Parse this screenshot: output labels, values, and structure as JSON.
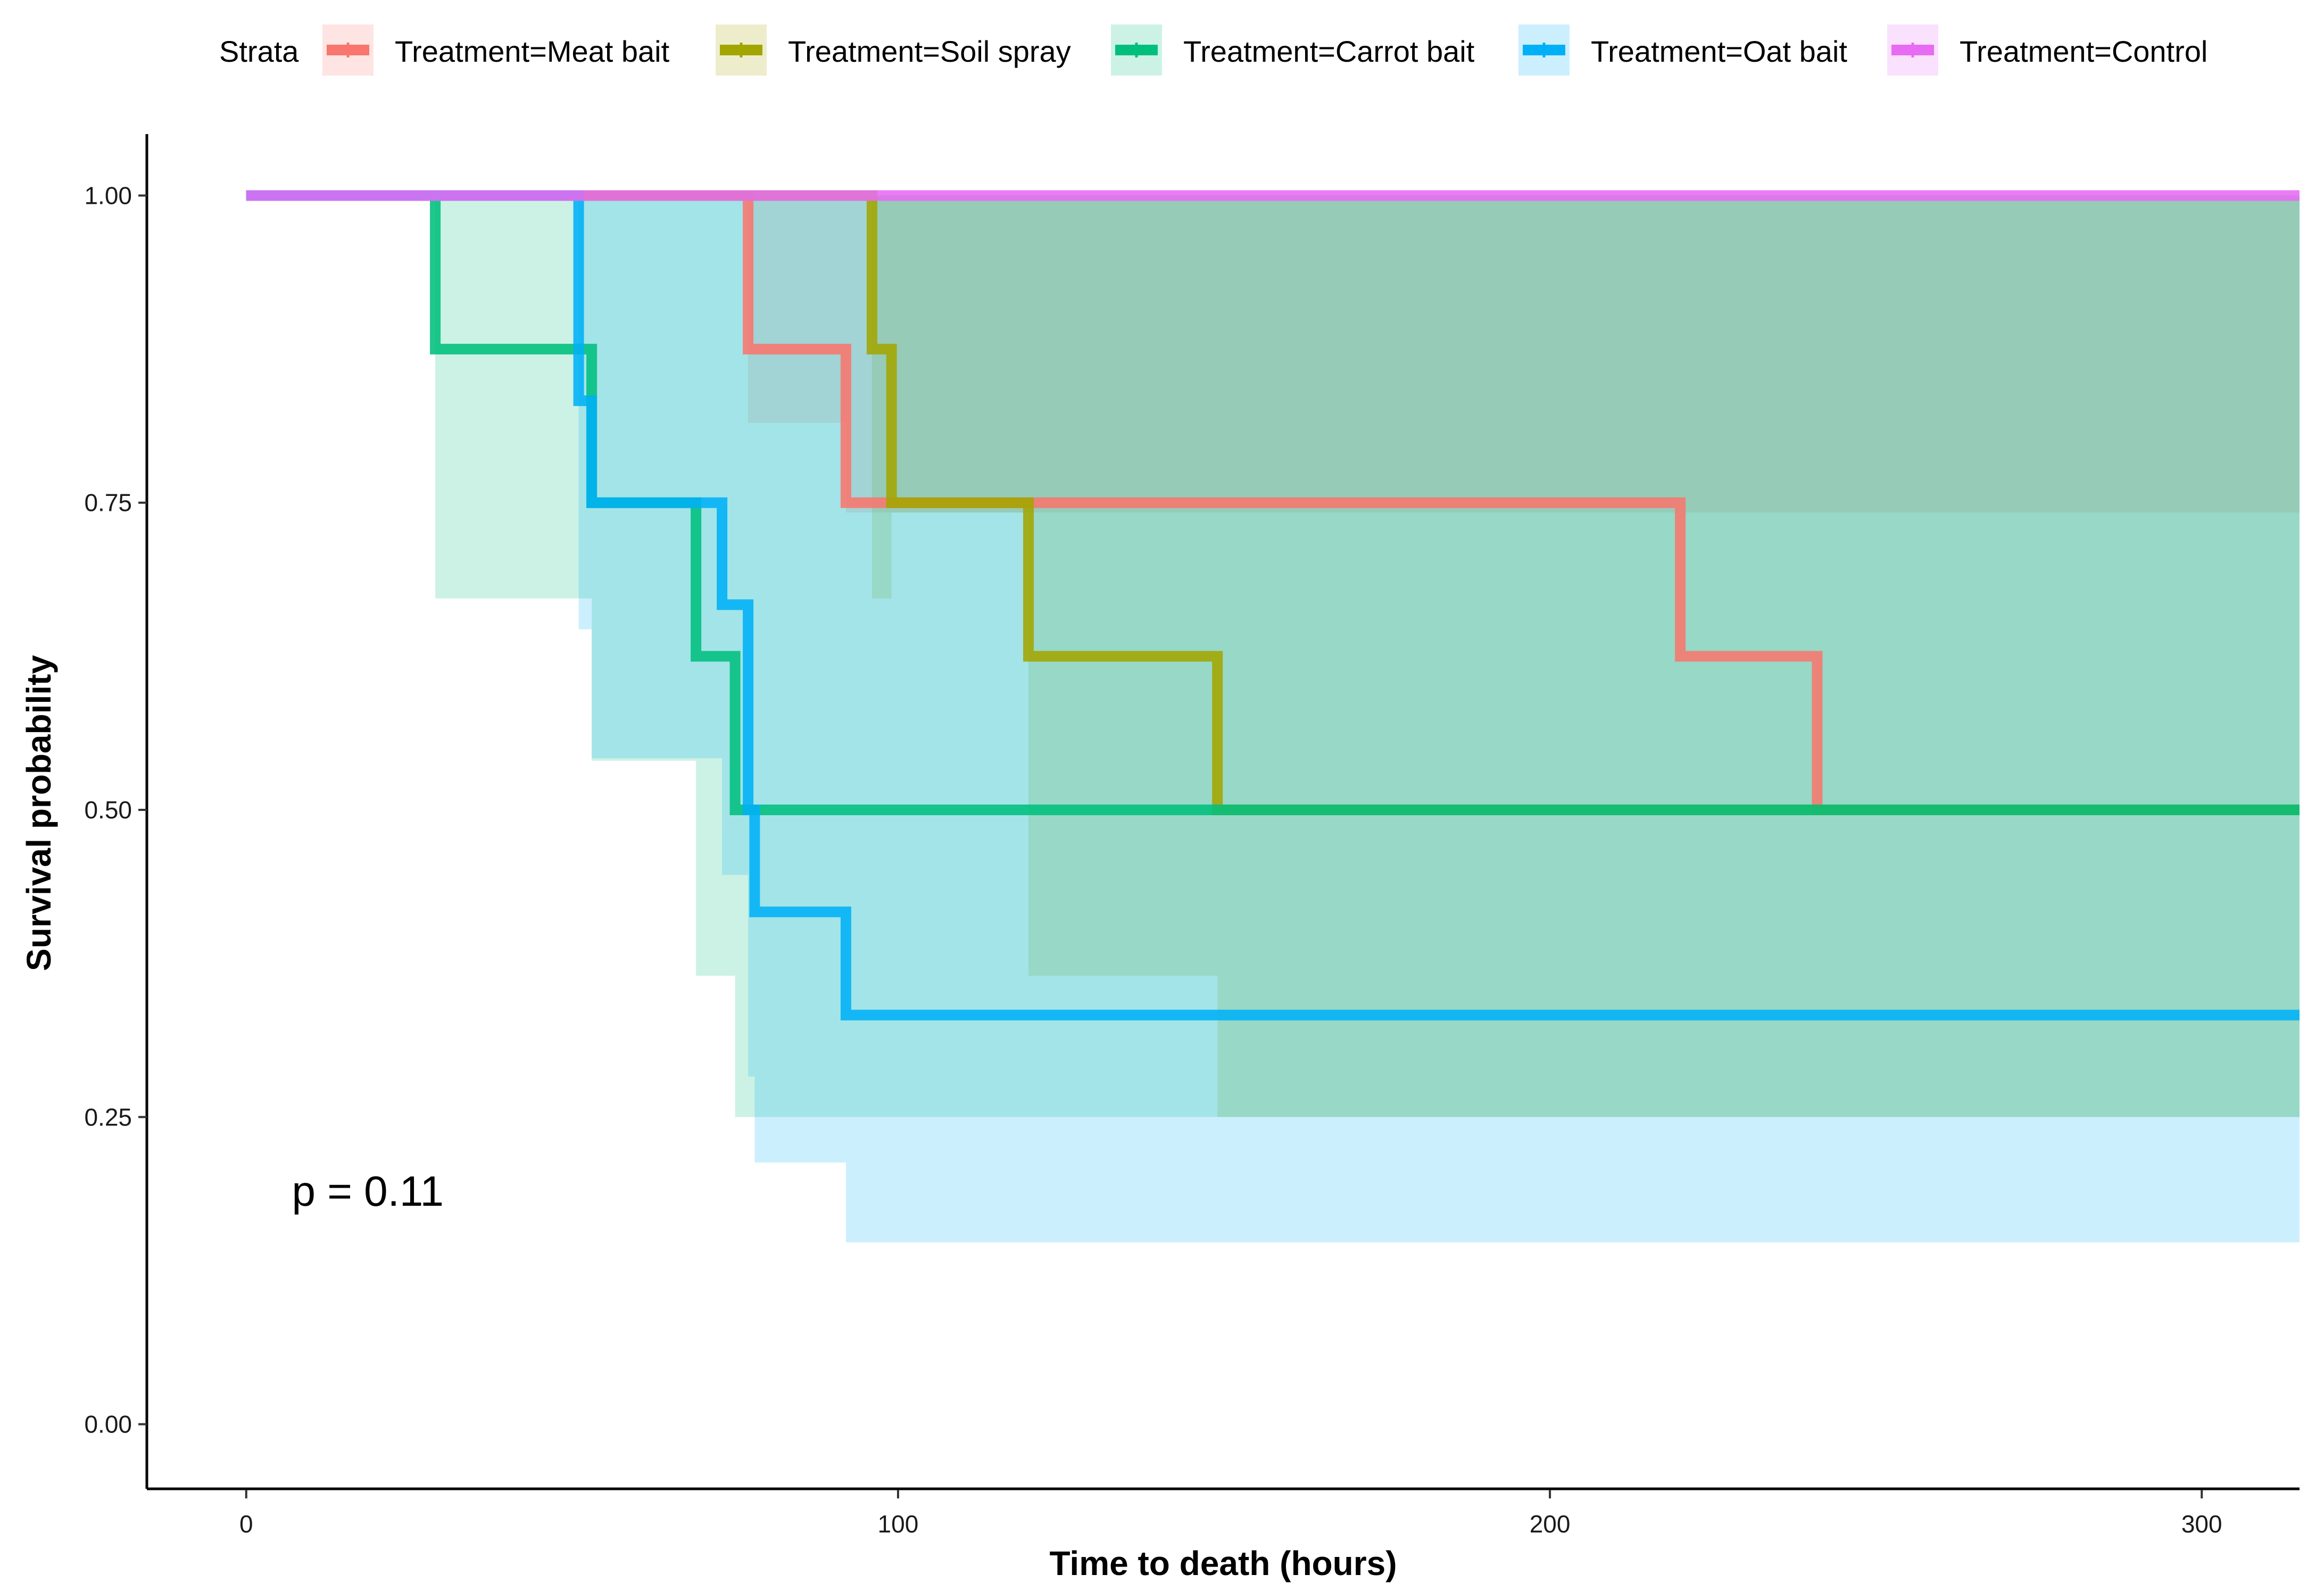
{
  "chart_data": {
    "type": "line",
    "subtype": "kaplan-meier-step",
    "xlabel": "Time to death (hours)",
    "ylabel": "Survival probability",
    "xlim": [
      -15,
      315
    ],
    "ylim": [
      -0.05,
      1.05
    ],
    "x_ticks": [
      0,
      100,
      200,
      300
    ],
    "x_tick_labels": [
      "0",
      "100",
      "200",
      "300"
    ],
    "y_ticks": [
      0,
      0.25,
      0.5,
      0.75,
      1.0
    ],
    "y_tick_labels": [
      "0.00",
      "0.25",
      "0.50",
      "0.75",
      "1.00"
    ],
    "annotation": "p = 0.11",
    "annotation_at": [
      7,
      0.19
    ],
    "grid": false,
    "legend": {
      "title": "Strata",
      "placement": "top"
    },
    "series": [
      {
        "name": "Treatment=Meat bait",
        "color": "#F8766D",
        "steps": [
          [
            0,
            1.0
          ],
          [
            77,
            0.875
          ],
          [
            92,
            0.75
          ],
          [
            220,
            0.625
          ],
          [
            241,
            0.5
          ],
          [
            315,
            0.5
          ]
        ],
        "ci": [
          [
            0,
            1.0,
            1.0
          ],
          [
            77,
            0.815,
            1.0
          ],
          [
            92,
            0.742,
            1.0
          ],
          [
            220,
            0.742,
            1.0
          ],
          [
            241,
            0.742,
            1.0
          ],
          [
            315,
            0.742,
            1.0
          ]
        ]
      },
      {
        "name": "Treatment=Soil spray",
        "color": "#A3A500",
        "steps": [
          [
            0,
            1.0
          ],
          [
            96,
            0.875
          ],
          [
            99,
            0.75
          ],
          [
            120,
            0.625
          ],
          [
            149,
            0.5
          ],
          [
            315,
            0.5
          ]
        ],
        "ci": [
          [
            0,
            1.0,
            1.0
          ],
          [
            96,
            0.672,
            1.0
          ],
          [
            99,
            0.742,
            1.0
          ],
          [
            120,
            0.365,
            1.0
          ],
          [
            149,
            0.25,
            1.0
          ],
          [
            315,
            0.25,
            1.0
          ]
        ]
      },
      {
        "name": "Treatment=Carrot bait",
        "color": "#00BF7D",
        "steps": [
          [
            0,
            1.0
          ],
          [
            29,
            0.875
          ],
          [
            53,
            0.75
          ],
          [
            69,
            0.625
          ],
          [
            75,
            0.5
          ],
          [
            315,
            0.5
          ]
        ],
        "ci": [
          [
            0,
            1.0,
            1.0
          ],
          [
            29,
            0.672,
            1.0
          ],
          [
            53,
            0.54,
            1.0
          ],
          [
            69,
            0.365,
            1.0
          ],
          [
            75,
            0.25,
            1.0
          ],
          [
            315,
            0.25,
            1.0
          ]
        ]
      },
      {
        "name": "Treatment=Oat bait",
        "color": "#00B0F6",
        "steps": [
          [
            0,
            1.0
          ],
          [
            51,
            0.833
          ],
          [
            53,
            0.75
          ],
          [
            73,
            0.667
          ],
          [
            77,
            0.5
          ],
          [
            78,
            0.417
          ],
          [
            92,
            0.333
          ],
          [
            315,
            0.333
          ]
        ],
        "ci": [
          [
            0,
            1.0,
            1.0
          ],
          [
            51,
            0.647,
            1.0
          ],
          [
            53,
            0.542,
            1.0
          ],
          [
            73,
            0.447,
            1.0
          ],
          [
            77,
            0.283,
            1.0
          ],
          [
            78,
            0.213,
            1.0
          ],
          [
            92,
            0.148,
            1.0
          ],
          [
            315,
            0.148,
            1.0
          ]
        ]
      },
      {
        "name": "Treatment=Control",
        "color": "#E76BF3",
        "steps": [
          [
            0,
            1.0
          ],
          [
            315,
            1.0
          ]
        ],
        "ci": [
          [
            0,
            1.0,
            1.0
          ],
          [
            315,
            1.0,
            1.0
          ]
        ]
      }
    ]
  }
}
